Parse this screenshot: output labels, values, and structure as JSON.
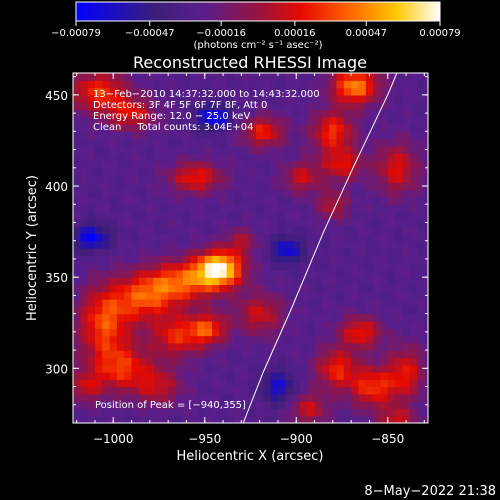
{
  "chart_data": {
    "type": "heatmap",
    "title": "Reconstructed RHESSI Image",
    "xlabel": "Heliocentric X (arcsec)",
    "ylabel": "Heliocentric Y (arcsec)",
    "xlim": [
      -1022,
      -828
    ],
    "ylim": [
      270,
      462
    ],
    "x_ticks": [
      -1000,
      -950,
      -900,
      -850
    ],
    "x_tick_labels": [
      "−1000",
      "−950",
      "−900",
      "−850"
    ],
    "y_ticks": [
      300,
      350,
      400,
      450
    ],
    "y_tick_labels": [
      "300",
      "350",
      "400",
      "450"
    ],
    "colorbar": {
      "range": [
        -0.00079,
        0.00079
      ],
      "ticks": [
        -0.00079,
        -0.00047,
        -0.00016,
        0.00016,
        0.00047,
        0.00079
      ],
      "tick_labels": [
        "−0.00079",
        "−0.00047",
        "−0.00016",
        "0.00016",
        "0.00047",
        "0.00079"
      ],
      "units_label": "(photons cm⁻² s⁻¹ asec⁻²)"
    },
    "info_lines": [
      "13−Feb−2010 14:37:32.000 to 14:43:32.000",
      "Detectors: 3F 4F 5F 6F 7F 8F, Att 0",
      "Energy Range: 12.0 − 25.0 keV",
      "Clean     Total counts: 3.04E+04"
    ],
    "peak_label": "Position of Peak = [−940,355]",
    "peak": [
      -940,
      355
    ],
    "limb_line": [
      [
        -929,
        270
      ],
      [
        -918,
        298
      ],
      [
        -903,
        332
      ],
      [
        -885,
        375
      ],
      [
        -868,
        412
      ],
      [
        -850,
        450
      ],
      [
        -845,
        462
      ]
    ],
    "blobs": [
      {
        "x": -942,
        "y": 355,
        "sx": 9,
        "sy": 7,
        "amp": 1.0
      },
      {
        "x": -962,
        "y": 348,
        "sx": 14,
        "sy": 8,
        "amp": 0.6
      },
      {
        "x": -983,
        "y": 339,
        "sx": 12,
        "sy": 9,
        "amp": 0.55
      },
      {
        "x": -1005,
        "y": 325,
        "sx": 10,
        "sy": 14,
        "amp": 0.6
      },
      {
        "x": -995,
        "y": 300,
        "sx": 12,
        "sy": 9,
        "amp": 0.5
      },
      {
        "x": -965,
        "y": 318,
        "sx": 10,
        "sy": 8,
        "amp": 0.5
      },
      {
        "x": -948,
        "y": 322,
        "sx": 7,
        "sy": 6,
        "amp": 0.55
      },
      {
        "x": -920,
        "y": 330,
        "sx": 9,
        "sy": 8,
        "amp": 0.4
      },
      {
        "x": -975,
        "y": 290,
        "sx": 9,
        "sy": 7,
        "amp": 0.35
      },
      {
        "x": -1008,
        "y": 452,
        "sx": 11,
        "sy": 8,
        "amp": 0.55
      },
      {
        "x": -990,
        "y": 440,
        "sx": 9,
        "sy": 6,
        "amp": 0.45
      },
      {
        "x": -955,
        "y": 405,
        "sx": 10,
        "sy": 6,
        "amp": 0.5
      },
      {
        "x": -918,
        "y": 430,
        "sx": 8,
        "sy": 6,
        "amp": 0.5
      },
      {
        "x": -897,
        "y": 405,
        "sx": 7,
        "sy": 6,
        "amp": 0.4
      },
      {
        "x": -880,
        "y": 430,
        "sx": 8,
        "sy": 8,
        "amp": 0.55
      },
      {
        "x": -868,
        "y": 455,
        "sx": 9,
        "sy": 7,
        "amp": 0.75
      },
      {
        "x": -875,
        "y": 412,
        "sx": 8,
        "sy": 6,
        "amp": 0.45
      },
      {
        "x": -845,
        "y": 410,
        "sx": 8,
        "sy": 10,
        "amp": 0.45
      },
      {
        "x": -880,
        "y": 390,
        "sx": 6,
        "sy": 6,
        "amp": 0.35
      },
      {
        "x": -865,
        "y": 320,
        "sx": 8,
        "sy": 6,
        "amp": 0.5
      },
      {
        "x": -878,
        "y": 300,
        "sx": 8,
        "sy": 8,
        "amp": 0.5
      },
      {
        "x": -858,
        "y": 290,
        "sx": 9,
        "sy": 8,
        "amp": 0.55
      },
      {
        "x": -840,
        "y": 298,
        "sx": 7,
        "sy": 10,
        "amp": 0.45
      },
      {
        "x": -893,
        "y": 278,
        "sx": 7,
        "sy": 6,
        "amp": 0.4
      },
      {
        "x": -845,
        "y": 272,
        "sx": 7,
        "sy": 5,
        "amp": 0.4
      },
      {
        "x": -1015,
        "y": 290,
        "sx": 6,
        "sy": 6,
        "amp": 0.35
      },
      {
        "x": -930,
        "y": 370,
        "sx": 6,
        "sy": 5,
        "amp": 0.3
      },
      {
        "x": -1012,
        "y": 372,
        "sx": 7,
        "sy": 5,
        "amp": -0.5
      },
      {
        "x": -945,
        "y": 438,
        "sx": 7,
        "sy": 5,
        "amp": -0.5
      },
      {
        "x": -905,
        "y": 365,
        "sx": 6,
        "sy": 5,
        "amp": -0.45
      },
      {
        "x": -910,
        "y": 290,
        "sx": 6,
        "sy": 6,
        "amp": -0.4
      }
    ]
  },
  "timestamp": "8−May−2022 21:38"
}
